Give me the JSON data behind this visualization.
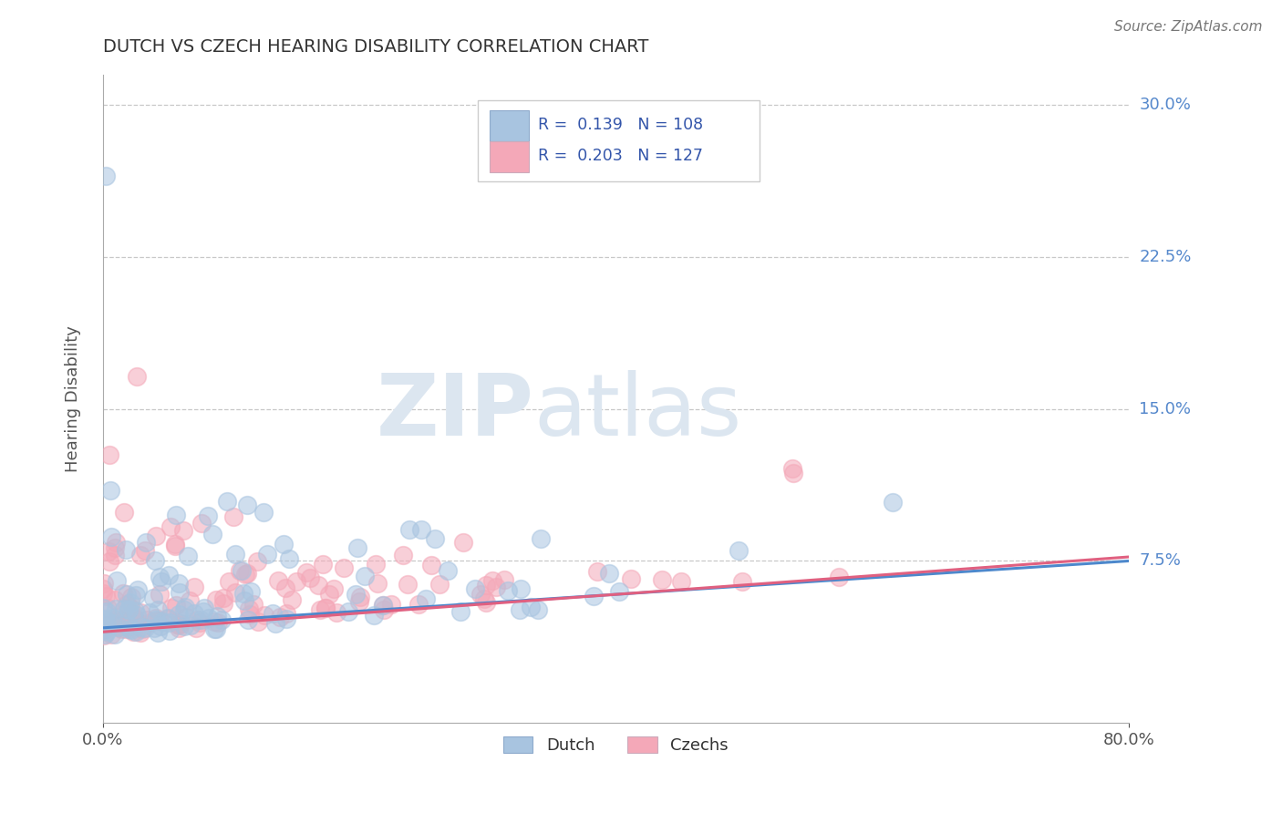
{
  "title": "DUTCH VS CZECH HEARING DISABILITY CORRELATION CHART",
  "source": "Source: ZipAtlas.com",
  "ylabel": "Hearing Disability",
  "xlim": [
    0.0,
    0.8
  ],
  "ylim": [
    -0.005,
    0.315
  ],
  "y_ticks": [
    0.075,
    0.15,
    0.225,
    0.3
  ],
  "y_tick_labels": [
    "7.5%",
    "15.0%",
    "22.5%",
    "30.0%"
  ],
  "dutch_color": "#a8c4e0",
  "czech_color": "#f4a8b8",
  "dutch_line_color": "#4d88cc",
  "czech_line_color": "#e06080",
  "dutch_R": 0.139,
  "dutch_N": 108,
  "czech_R": 0.203,
  "czech_N": 127,
  "background_color": "#ffffff",
  "grid_color": "#c8c8c8",
  "watermark_color": "#dce6f0",
  "title_color": "#333333",
  "legend_label_color": "#3355aa",
  "tick_color": "#5588cc"
}
